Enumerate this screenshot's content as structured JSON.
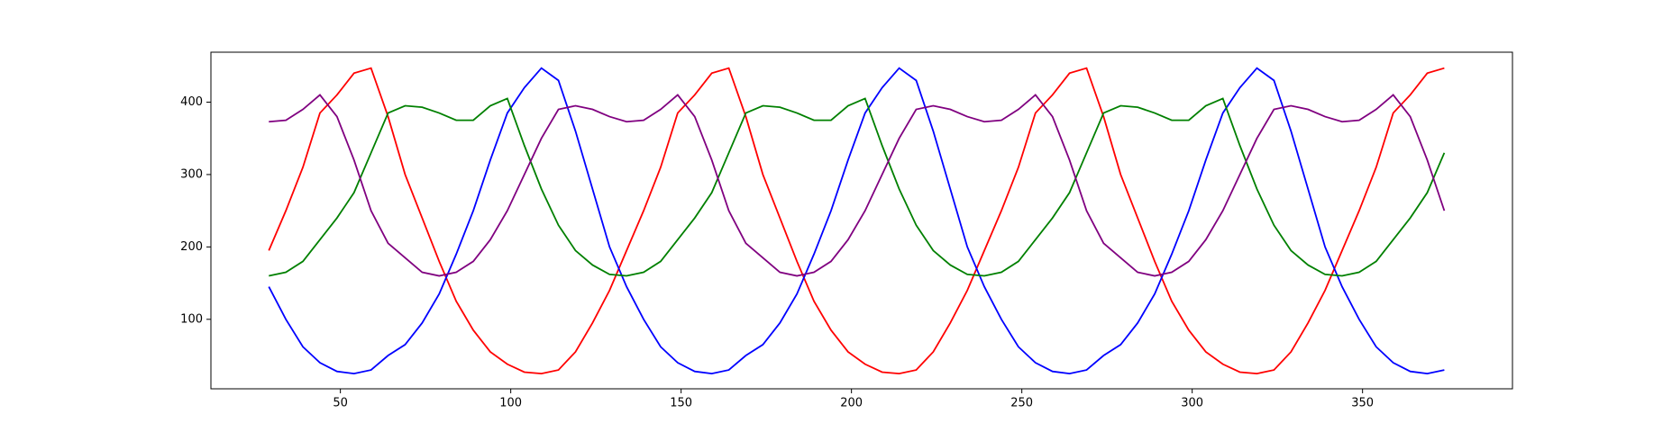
{
  "chart_data": {
    "type": "line",
    "x": [
      29,
      34,
      39,
      44,
      49,
      54,
      59,
      64,
      69,
      74,
      79,
      84,
      89,
      94,
      99,
      104,
      109,
      114,
      119,
      124,
      129,
      134,
      139,
      144,
      149,
      154,
      159,
      164,
      169,
      174,
      179,
      184,
      189,
      194,
      199,
      204,
      209,
      214,
      219,
      224,
      229,
      234,
      239,
      244,
      249,
      254,
      259,
      264,
      269,
      274,
      279,
      284,
      289,
      294,
      299,
      304,
      309,
      314,
      319,
      324,
      329,
      334,
      339,
      344,
      349,
      354,
      359,
      364,
      369,
      374
    ],
    "series": [
      {
        "name": "red",
        "color": "#ff0000",
        "values": [
          195,
          250,
          310,
          385,
          410,
          440,
          447,
          380,
          300,
          240,
          180,
          125,
          85,
          55,
          38,
          27,
          25,
          30,
          55,
          95,
          140,
          195,
          250,
          310,
          385,
          410,
          440,
          447,
          380,
          300,
          240,
          180,
          125,
          85,
          55,
          38,
          27,
          25,
          30,
          55,
          95,
          140,
          195,
          250,
          310,
          385,
          410,
          440,
          447,
          380,
          300,
          240,
          180,
          125,
          85,
          55,
          38,
          27,
          25,
          30,
          55,
          95,
          140,
          195,
          250,
          310,
          385,
          410,
          440,
          447
        ]
      },
      {
        "name": "blue",
        "color": "#0000ff",
        "values": [
          145,
          100,
          62,
          40,
          28,
          25,
          30,
          50,
          65,
          95,
          135,
          190,
          250,
          320,
          385,
          420,
          447,
          430,
          360,
          280,
          200,
          145,
          100,
          62,
          40,
          28,
          25,
          30,
          50,
          65,
          95,
          135,
          190,
          250,
          320,
          385,
          420,
          447,
          430,
          360,
          280,
          200,
          145,
          100,
          62,
          40,
          28,
          25,
          30,
          50,
          65,
          95,
          135,
          190,
          250,
          320,
          385,
          420,
          447,
          430,
          360,
          280,
          200,
          145,
          100,
          62,
          40,
          28,
          25,
          30
        ]
      },
      {
        "name": "green",
        "color": "#008000",
        "values": [
          160,
          165,
          180,
          210,
          240,
          275,
          330,
          385,
          395,
          393,
          385,
          375,
          375,
          395,
          405,
          340,
          280,
          230,
          195,
          175,
          162,
          160,
          165,
          180,
          210,
          240,
          275,
          330,
          385,
          395,
          393,
          385,
          375,
          375,
          395,
          405,
          340,
          280,
          230,
          195,
          175,
          162,
          160,
          165,
          180,
          210,
          240,
          275,
          330,
          385,
          395,
          393,
          385,
          375,
          375,
          395,
          405,
          340,
          280,
          230,
          195,
          175,
          162,
          160,
          165,
          180,
          210,
          240,
          275,
          330
        ]
      },
      {
        "name": "purple",
        "color": "#800080",
        "values": [
          373,
          375,
          390,
          410,
          380,
          320,
          250,
          205,
          185,
          165,
          160,
          165,
          180,
          210,
          250,
          300,
          350,
          390,
          395,
          390,
          380,
          373,
          375,
          390,
          410,
          380,
          320,
          250,
          205,
          185,
          165,
          160,
          165,
          180,
          210,
          250,
          300,
          350,
          390,
          395,
          390,
          380,
          373,
          375,
          390,
          410,
          380,
          320,
          250,
          205,
          185,
          165,
          160,
          165,
          180,
          210,
          250,
          300,
          350,
          390,
          395,
          390,
          380,
          373,
          375,
          390,
          410,
          380,
          320,
          250
        ]
      }
    ],
    "xlim": [
      12,
      394
    ],
    "ylim": [
      4,
      469
    ],
    "xticks": [
      50,
      100,
      150,
      200,
      250,
      300,
      350
    ],
    "yticks": [
      100,
      200,
      300,
      400
    ],
    "grid": false
  }
}
